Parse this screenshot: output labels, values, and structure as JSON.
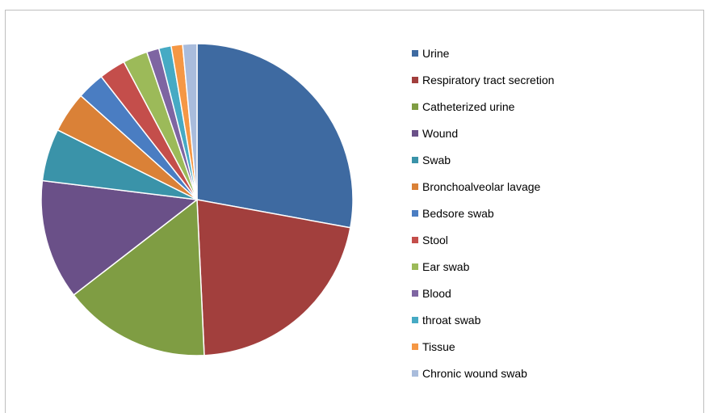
{
  "chart_data": {
    "type": "pie",
    "title": "",
    "legend_position": "right",
    "categories": [
      "Urine",
      "Respiratory tract secretion",
      "Catheterized urine",
      "Wound",
      "Swab",
      "Bronchoalveolar lavage",
      "Bedsore swab",
      "Stool",
      "Ear swab",
      "Blood",
      "throat swab",
      "Tissue",
      "Chronic wound swab"
    ],
    "values": [
      28.3,
      21.7,
      15.5,
      12.6,
      5.5,
      4.3,
      2.9,
      2.8,
      2.6,
      1.3,
      1.3,
      1.2,
      1.5
    ],
    "colors": [
      "#3E6AA1",
      "#A23F3D",
      "#7F9D43",
      "#6A5088",
      "#3A93A9",
      "#DA8137",
      "#4A7DC2",
      "#C44E4B",
      "#9CBA59",
      "#7E65A2",
      "#46AAC4",
      "#F59744",
      "#A9BCDC"
    ]
  }
}
